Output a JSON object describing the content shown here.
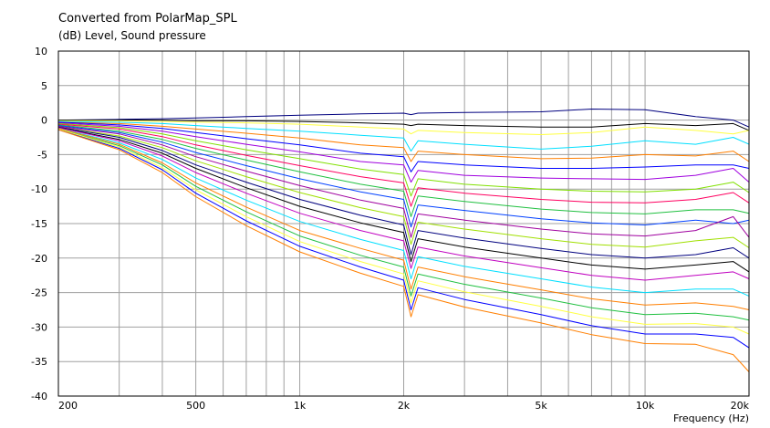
{
  "chart_data": {
    "type": "line",
    "title": "Converted from PolarMap_SPL",
    "subtitle": "(dB)  Level, Sound pressure",
    "xlabel": "Frequency  (Hz)",
    "ylabel": "(dB)  Level, Sound pressure",
    "xscale": "log",
    "xlim": [
      200,
      20000
    ],
    "ylim": [
      -40,
      10
    ],
    "x_ticks": [
      200,
      500,
      1000,
      2000,
      5000,
      10000,
      20000
    ],
    "x_tick_labels": [
      "200",
      "500",
      "1k",
      "2k",
      "5k",
      "10k",
      "20k"
    ],
    "y_ticks": [
      10,
      5,
      0,
      -5,
      -10,
      -15,
      -20,
      -25,
      -30,
      -35,
      -40
    ],
    "y_tick_labels": [
      "10",
      "5",
      "0",
      "-5",
      "-10",
      "-15",
      "-20",
      "-25",
      "-30",
      "-35",
      "-40"
    ],
    "grid": true,
    "legend": "none",
    "x": [
      200,
      300,
      400,
      500,
      700,
      1000,
      1500,
      2000,
      2100,
      2200,
      3000,
      5000,
      7000,
      10000,
      14000,
      18000,
      20000
    ],
    "series": [
      {
        "color": "#00007f",
        "values": [
          0,
          0.1,
          0.2,
          0.3,
          0.5,
          0.7,
          0.9,
          1.0,
          0.8,
          1.0,
          1.1,
          1.2,
          1.6,
          1.5,
          0.5,
          0.0,
          -1.0
        ]
      },
      {
        "color": "#000000",
        "values": [
          0,
          0,
          0,
          -0.1,
          -0.1,
          -0.2,
          -0.4,
          -0.6,
          -0.8,
          -0.6,
          -0.8,
          -1.0,
          -1.0,
          -0.5,
          -0.8,
          -0.5,
          -1.5
        ]
      },
      {
        "color": "#ffff40",
        "values": [
          -0.1,
          -0.1,
          -0.2,
          -0.3,
          -0.4,
          -0.6,
          -1.0,
          -1.3,
          -2.0,
          -1.5,
          -1.8,
          -2.1,
          -1.8,
          -1.0,
          -1.5,
          -2.0,
          -1.5
        ]
      },
      {
        "color": "#00dfff",
        "values": [
          -0.2,
          -0.3,
          -0.5,
          -0.8,
          -1.2,
          -1.6,
          -2.2,
          -2.6,
          -4.5,
          -3.0,
          -3.5,
          -4.2,
          -3.8,
          -3.0,
          -3.5,
          -2.5,
          -3.5
        ]
      },
      {
        "color": "#ff7f00",
        "values": [
          -0.3,
          -0.5,
          -0.9,
          -1.3,
          -1.9,
          -2.6,
          -3.6,
          -4.0,
          -6.0,
          -4.5,
          -5.0,
          -5.6,
          -5.5,
          -5.0,
          -5.2,
          -4.5,
          -6.0
        ]
      },
      {
        "color": "#0000ff",
        "values": [
          -0.3,
          -0.7,
          -1.2,
          -1.8,
          -2.7,
          -3.6,
          -4.8,
          -5.3,
          -7.5,
          -6.0,
          -6.5,
          -7.0,
          -7.0,
          -6.8,
          -6.5,
          -6.5,
          -7.0
        ]
      },
      {
        "color": "#9f00df",
        "values": [
          -0.4,
          -0.9,
          -1.6,
          -2.4,
          -3.5,
          -4.6,
          -6.0,
          -6.5,
          -9.0,
          -7.3,
          -8.0,
          -8.4,
          -8.5,
          -8.6,
          -8.0,
          -7.0,
          -9.0
        ]
      },
      {
        "color": "#80e000",
        "values": [
          -0.5,
          -1.1,
          -2.0,
          -3.0,
          -4.3,
          -5.6,
          -7.1,
          -7.9,
          -11.0,
          -8.5,
          -9.3,
          -10.0,
          -10.3,
          -10.4,
          -10.0,
          -9.0,
          -10.5
        ]
      },
      {
        "color": "#ff0060",
        "values": [
          -0.6,
          -1.3,
          -2.4,
          -3.6,
          -5.1,
          -6.6,
          -8.2,
          -9.1,
          -12.5,
          -9.8,
          -10.6,
          -11.5,
          -11.9,
          -12.0,
          -11.5,
          -10.5,
          -12.0
        ]
      },
      {
        "color": "#20c040",
        "values": [
          -0.7,
          -1.6,
          -2.8,
          -4.1,
          -5.8,
          -7.5,
          -9.3,
          -10.3,
          -14.0,
          -11.0,
          -11.8,
          -12.9,
          -13.4,
          -13.6,
          -13.0,
          -13.0,
          -13.5
        ]
      },
      {
        "color": "#0040ff",
        "values": [
          -0.8,
          -1.8,
          -3.2,
          -4.7,
          -6.6,
          -8.5,
          -10.4,
          -11.5,
          -15.5,
          -12.3,
          -13.1,
          -14.3,
          -14.9,
          -15.2,
          -14.5,
          -15.0,
          -14.5
        ]
      },
      {
        "color": "#9f009f",
        "values": [
          -0.9,
          -2.0,
          -3.6,
          -5.3,
          -7.4,
          -9.5,
          -11.6,
          -12.8,
          -17.0,
          -13.6,
          -14.5,
          -15.8,
          -16.5,
          -16.8,
          -16.0,
          -14.0,
          -17.0
        ]
      },
      {
        "color": "#a0e000",
        "values": [
          -1.0,
          -2.3,
          -4.0,
          -5.9,
          -8.2,
          -10.5,
          -12.7,
          -14.0,
          -18.0,
          -14.8,
          -15.8,
          -17.2,
          -18.0,
          -18.4,
          -17.5,
          -17.0,
          -18.5
        ]
      },
      {
        "color": "#00007f",
        "values": [
          -1.0,
          -2.5,
          -4.4,
          -6.5,
          -9.0,
          -11.5,
          -13.8,
          -15.2,
          -19.5,
          -16.0,
          -17.1,
          -18.6,
          -19.5,
          -20.0,
          -19.5,
          -18.5,
          -20.0
        ]
      },
      {
        "color": "#000000",
        "values": [
          -1.1,
          -2.8,
          -4.8,
          -7.0,
          -9.8,
          -12.5,
          -14.9,
          -16.3,
          -20.5,
          -17.2,
          -18.4,
          -20.0,
          -21.0,
          -21.6,
          -21.0,
          -20.5,
          -22.0
        ]
      },
      {
        "color": "#c000c0",
        "values": [
          -1.1,
          -3.0,
          -5.2,
          -7.6,
          -10.6,
          -13.5,
          -16.0,
          -17.5,
          -21.5,
          -18.4,
          -19.7,
          -21.4,
          -22.5,
          -23.2,
          -22.5,
          -22.0,
          -23.0
        ]
      },
      {
        "color": "#00dfff",
        "values": [
          -1.2,
          -3.3,
          -5.7,
          -8.4,
          -11.6,
          -14.7,
          -17.3,
          -18.9,
          -23.0,
          -19.8,
          -21.2,
          -23.0,
          -24.2,
          -25.0,
          -24.5,
          -24.5,
          -25.5
        ]
      },
      {
        "color": "#ff7f00",
        "values": [
          -1.2,
          -3.5,
          -6.2,
          -9.1,
          -12.6,
          -16.0,
          -18.6,
          -20.3,
          -24.5,
          -21.3,
          -22.7,
          -24.6,
          -25.9,
          -26.8,
          -26.5,
          -27.0,
          -27.5
        ]
      },
      {
        "color": "#20c040",
        "values": [
          -1.3,
          -3.7,
          -6.5,
          -9.6,
          -13.3,
          -16.8,
          -19.6,
          -21.3,
          -25.5,
          -22.3,
          -23.8,
          -25.8,
          -27.2,
          -28.2,
          -28.0,
          -28.5,
          -29.0
        ]
      },
      {
        "color": "#ffff40",
        "values": [
          -1.3,
          -3.9,
          -6.9,
          -10.1,
          -14.0,
          -17.6,
          -20.5,
          -22.3,
          -26.5,
          -23.3,
          -24.9,
          -27.0,
          -28.5,
          -29.6,
          -29.5,
          -30.0,
          -31.0
        ]
      },
      {
        "color": "#0000ff",
        "values": [
          -1.4,
          -4.1,
          -7.2,
          -10.6,
          -14.6,
          -18.3,
          -21.3,
          -23.2,
          -27.5,
          -24.3,
          -26.0,
          -28.2,
          -29.8,
          -31.0,
          -31.0,
          -31.5,
          -33.0
        ]
      },
      {
        "color": "#ff7f00",
        "values": [
          -1.4,
          -4.3,
          -7.6,
          -11.1,
          -15.3,
          -19.1,
          -22.2,
          -24.1,
          -28.5,
          -25.3,
          -27.1,
          -29.4,
          -31.1,
          -32.4,
          -32.5,
          -34.0,
          -36.5
        ]
      }
    ]
  }
}
